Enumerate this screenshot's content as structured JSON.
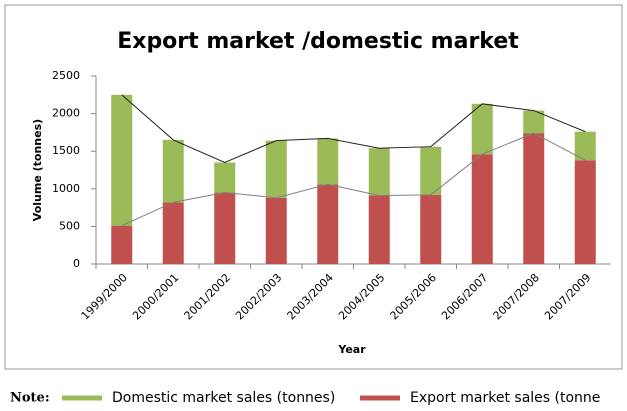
{
  "chart_data": {
    "type": "stacked-bar",
    "title": "Export market /domestic market",
    "y_label": "Volume (tonnes)",
    "x_label": "Year",
    "note_label": "Note:",
    "categories": [
      "1999/2000",
      "2000/2001",
      "2001/2002",
      "2002/2003",
      "2003/2004",
      "2004/2005",
      "2005/2006",
      "2006/2007",
      "2007/2008",
      "2007/2009"
    ],
    "series": [
      {
        "name": "Export market sales (tonne",
        "color": "#c0504d",
        "values": [
          510,
          820,
          950,
          880,
          1060,
          910,
          920,
          1460,
          1740,
          1380
        ]
      },
      {
        "name": "Domestic market sales (tonnes)",
        "color": "#9bbb59",
        "values": [
          1740,
          830,
          400,
          760,
          610,
          630,
          640,
          670,
          300,
          380
        ]
      }
    ],
    "ylim": [
      0,
      2500
    ],
    "yticks": [
      0,
      500,
      1000,
      1500,
      2000,
      2500
    ],
    "line_colors": [
      "#808080",
      "#222222"
    ],
    "grid": false
  }
}
